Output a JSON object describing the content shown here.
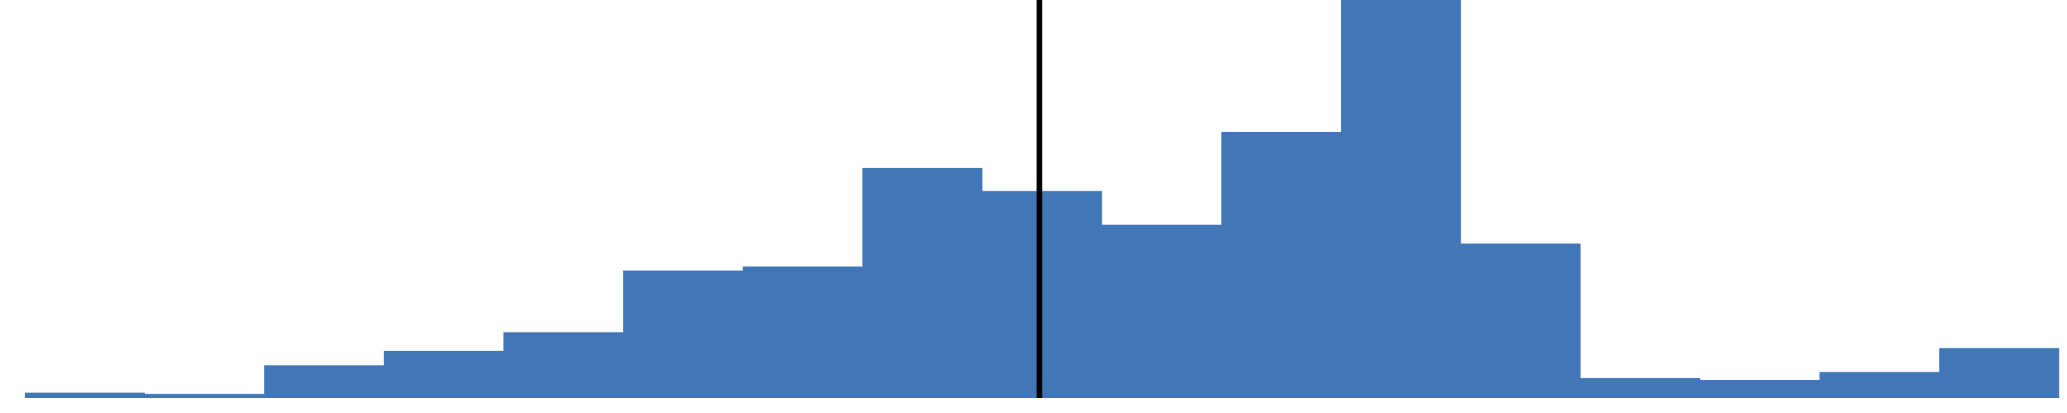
{
  "chart_data": {
    "type": "bar",
    "style": "histogram",
    "bar_color": "#4277b7",
    "marker_color": "#000000",
    "grid": false,
    "legend": "none",
    "ylim": [
      0,
      100
    ],
    "values": [
      1.3,
      1.0,
      8.2,
      11.8,
      16.5,
      32.0,
      33.0,
      57.8,
      52.0,
      43.5,
      66.8,
      100.0,
      38.8,
      5.0,
      4.5,
      6.5,
      12.5
    ],
    "reference_line_bin": 8.48
  }
}
